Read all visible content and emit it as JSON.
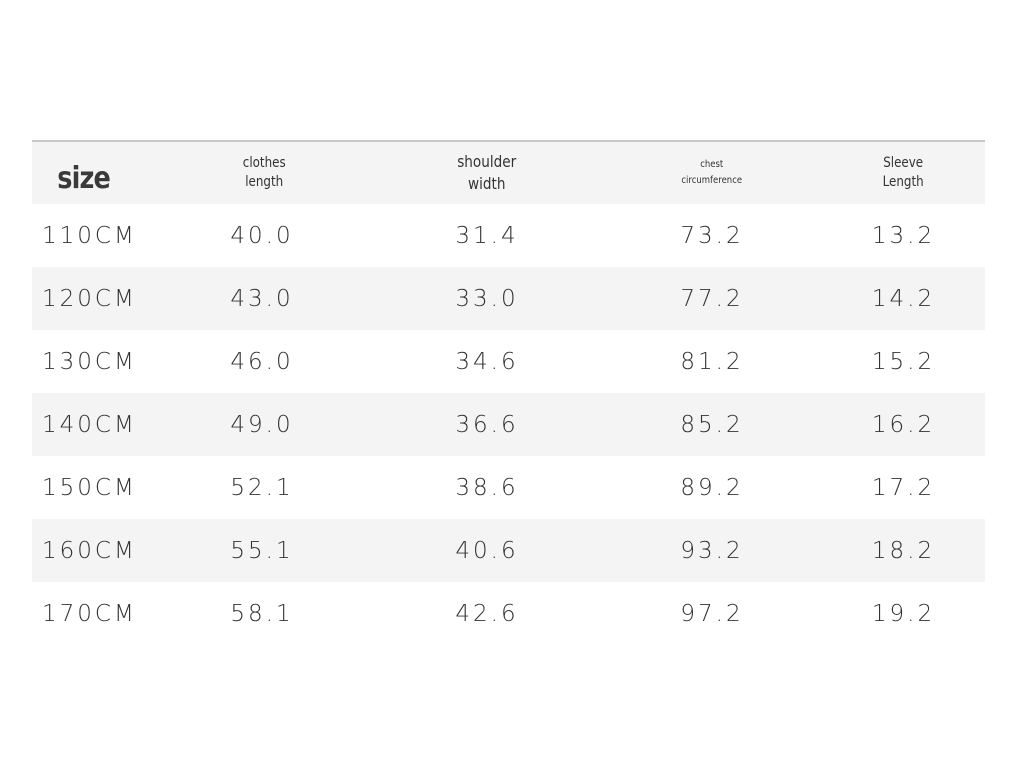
{
  "headers": {
    "size": "size",
    "clothes_length": "clothes\nlength",
    "shoulder_width": "shoulder\nwidth",
    "chest_circumference": "chest\ncircumference",
    "sleeve_length": "Sleeve\nLength"
  },
  "rows": [
    {
      "size": "110CM",
      "clothes_length": "40.0",
      "shoulder_width": "31.4",
      "chest_circumference": "73.2",
      "sleeve_length": "13.2"
    },
    {
      "size": "120CM",
      "clothes_length": "43.0",
      "shoulder_width": "33.0",
      "chest_circumference": "77.2",
      "sleeve_length": "14.2"
    },
    {
      "size": "130CM",
      "clothes_length": "46.0",
      "shoulder_width": "34.6",
      "chest_circumference": "81.2",
      "sleeve_length": "15.2"
    },
    {
      "size": "140CM",
      "clothes_length": "49.0",
      "shoulder_width": "36.6",
      "chest_circumference": "85.2",
      "sleeve_length": "16.2"
    },
    {
      "size": "150CM",
      "clothes_length": "52.1",
      "shoulder_width": "38.6",
      "chest_circumference": "89.2",
      "sleeve_length": "17.2"
    },
    {
      "size": "160CM",
      "clothes_length": "55.1",
      "shoulder_width": "40.6",
      "chest_circumference": "93.2",
      "sleeve_length": "18.2"
    },
    {
      "size": "170CM",
      "clothes_length": "58.1",
      "shoulder_width": "42.6",
      "chest_circumference": "97.2",
      "sleeve_length": "19.2"
    }
  ],
  "colors": {
    "shaded_row": "#f4f4f4",
    "rule": "#c8c8c8",
    "text": "#333333"
  }
}
